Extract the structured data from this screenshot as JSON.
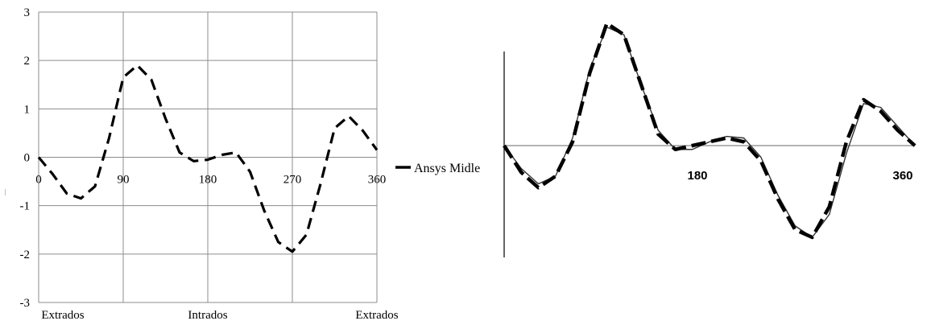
{
  "chart_data": [
    {
      "type": "line",
      "x": [
        0,
        15,
        30,
        45,
        60,
        75,
        90,
        105,
        120,
        135,
        150,
        165,
        180,
        195,
        210,
        225,
        240,
        255,
        270,
        285,
        300,
        315,
        330,
        345,
        360
      ],
      "series": [
        {
          "name": "Ansys Midle",
          "values": [
            0.0,
            -0.35,
            -0.75,
            -0.85,
            -0.6,
            0.4,
            1.65,
            1.9,
            1.6,
            0.8,
            0.1,
            -0.08,
            -0.05,
            0.05,
            0.1,
            -0.3,
            -1.1,
            -1.75,
            -1.95,
            -1.6,
            -0.55,
            0.6,
            0.85,
            0.55,
            0.15
          ]
        }
      ],
      "xlim": [
        0,
        360
      ],
      "ylim": [
        -3,
        3
      ],
      "x_tick_labels": [
        "0",
        "90",
        "180",
        "270",
        "360"
      ],
      "y_tick_labels": [
        "3",
        "2",
        "1",
        "0",
        "-1",
        "-2",
        "-3"
      ],
      "category_labels": [
        "Extrados",
        "Intrados",
        "Extrados"
      ],
      "grid": true,
      "legend_position": "right"
    },
    {
      "type": "line",
      "x": [
        0,
        15,
        30,
        45,
        60,
        75,
        90,
        105,
        120,
        135,
        150,
        165,
        180,
        195,
        210,
        225,
        240,
        255,
        270,
        285,
        300,
        315,
        330,
        345,
        360
      ],
      "series": [
        {
          "values": [
            0.0,
            -0.3,
            -0.5,
            -0.4,
            0.1,
            1.0,
            1.55,
            1.45,
            0.8,
            0.2,
            -0.05,
            -0.05,
            0.05,
            0.12,
            0.1,
            -0.15,
            -0.65,
            -1.05,
            -1.2,
            -0.9,
            -0.1,
            0.55,
            0.5,
            0.25,
            0.0
          ]
        },
        {
          "values": [
            0.0,
            -0.35,
            -0.55,
            -0.4,
            0.05,
            0.95,
            1.6,
            1.45,
            0.8,
            0.15,
            -0.05,
            0.0,
            0.05,
            0.1,
            0.05,
            -0.2,
            -0.7,
            -1.1,
            -1.2,
            -0.8,
            0.05,
            0.6,
            0.45,
            0.2,
            0.0
          ]
        }
      ],
      "xlim": [
        0,
        360
      ],
      "ylim": [
        -1.4,
        2.0
      ],
      "x_tick_labels": [
        "180",
        "360"
      ],
      "grid": false
    }
  ],
  "legend": {
    "label": "Ansys Midle"
  },
  "y_axis_glyph": "—"
}
